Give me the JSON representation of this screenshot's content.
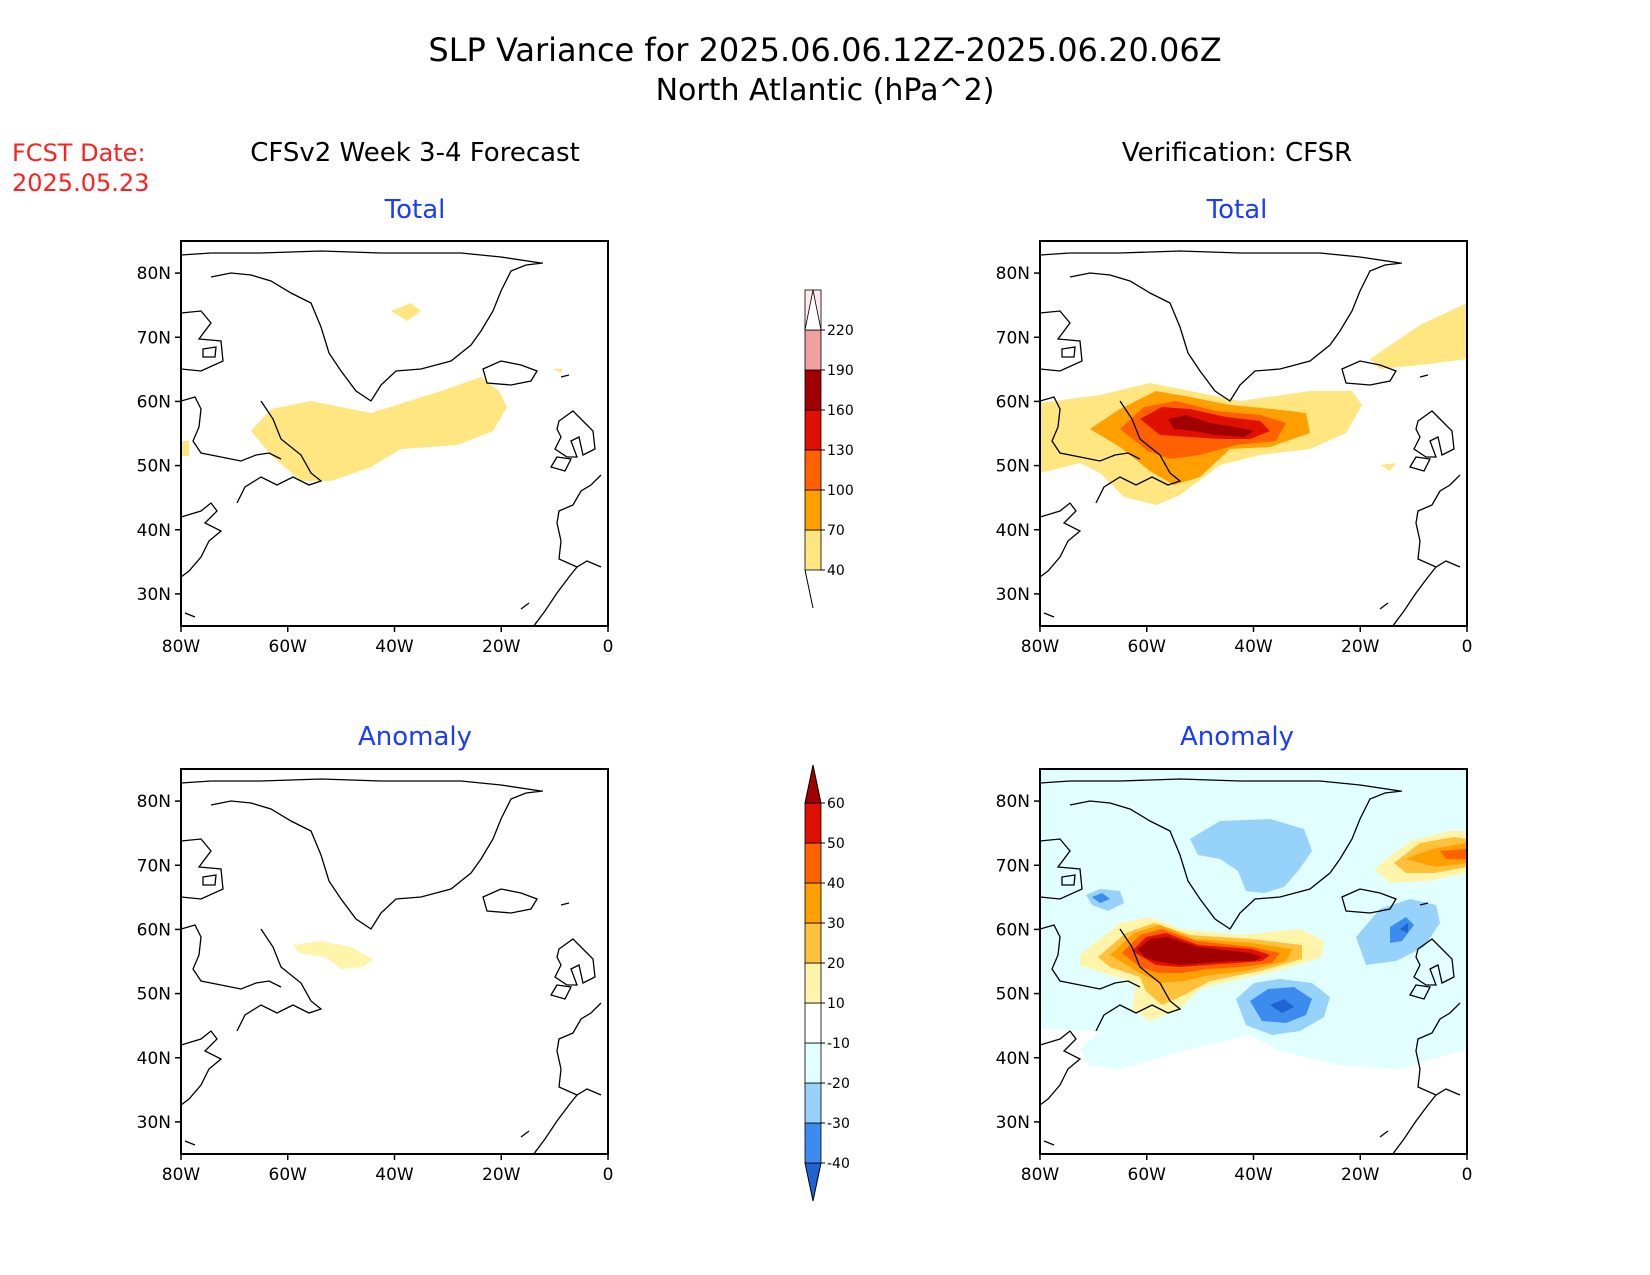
{
  "title": {
    "line1": "SLP Variance for 2025.06.06.12Z-2025.06.20.06Z",
    "line2": "North Atlantic (hPa^2)"
  },
  "fcst_date": {
    "label": "FCST Date:",
    "value": "2025.05.23"
  },
  "columns": {
    "left": "CFSv2 Week 3-4 Forecast",
    "right": "Verification: CFSR"
  },
  "panel_titles": {
    "total": "Total",
    "anomaly": "Anomaly"
  },
  "axes": {
    "lat_labels": [
      "80N",
      "70N",
      "60N",
      "50N",
      "40N",
      "30N"
    ],
    "lat_values": [
      80,
      70,
      60,
      50,
      40,
      30
    ],
    "lon_labels": [
      "80W",
      "60W",
      "40W",
      "20W",
      "0"
    ],
    "lon_values": [
      -80,
      -60,
      -40,
      -20,
      0
    ],
    "lon_range": [
      -80,
      0
    ],
    "lat_range": [
      25,
      85
    ]
  },
  "colorbars": {
    "total": {
      "labels": [
        "40",
        "70",
        "100",
        "130",
        "160",
        "190",
        "220"
      ],
      "colors": [
        "#ffe680",
        "#ffa000",
        "#ff6000",
        "#e01000",
        "#a00000",
        "#f0a0a0",
        "#ffe8e8"
      ]
    },
    "anomaly": {
      "labels": [
        "-40",
        "-30",
        "-20",
        "-10",
        "10",
        "20",
        "30",
        "40",
        "50",
        "60"
      ],
      "colors": [
        "#1e64d2",
        "#3c8cf0",
        "#96d2fa",
        "#e1ffff",
        "#ffffff",
        "#fff5aa",
        "#ffc03c",
        "#ffa000",
        "#ff6000",
        "#e01000",
        "#a00000"
      ]
    }
  },
  "colors": {
    "title_text": "#000000",
    "panel_title": "#1a3cff",
    "fcst_date": "#ff2020"
  }
}
